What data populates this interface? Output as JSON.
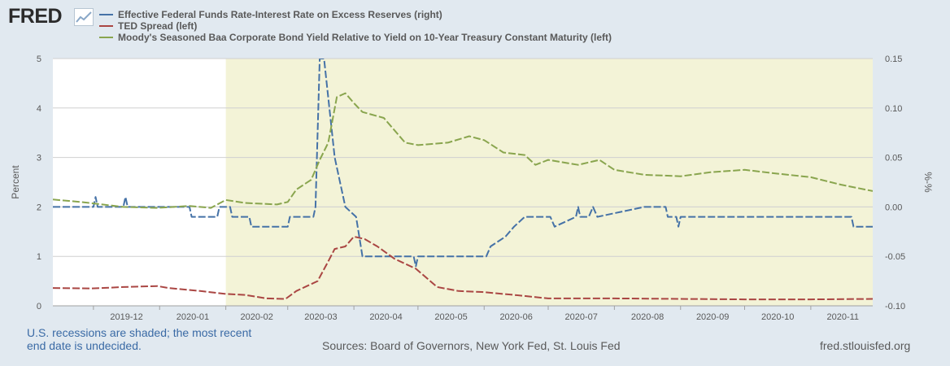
{
  "brand": {
    "logo_text": "FRED"
  },
  "colors": {
    "blue": "#4572a7",
    "red": "#aa4643",
    "green": "#89a54e",
    "recession": "#f3f3d7"
  },
  "chart_data": {
    "type": "line",
    "recession_shading": {
      "start": "2020-02",
      "end": "2020-11 (ongoing)"
    },
    "x_tick_labels": [
      "2019-12",
      "2020-01",
      "2020-02",
      "2020-03",
      "2020-04",
      "2020-05",
      "2020-06",
      "2020-07",
      "2020-08",
      "2020-09",
      "2020-10",
      "2020-11"
    ],
    "left_axis": {
      "label": "Percent",
      "ylim": [
        0,
        5
      ],
      "ticks": [
        "0",
        "1",
        "2",
        "3",
        "4",
        "5"
      ]
    },
    "right_axis": {
      "label": "%-%",
      "ylim": [
        -0.1,
        0.15
      ],
      "ticks": [
        "-0.10",
        "-0.05",
        "0.00",
        "0.05",
        "0.10",
        "0.15"
      ]
    },
    "series": [
      {
        "name": "Effective Federal Funds Rate-Interest Rate on Excess Reserves (right)",
        "axis": "right",
        "color": "#4572a7",
        "points": [
          [
            "2019-11-12",
            0.0
          ],
          [
            "2019-12-01",
            0.0
          ],
          [
            "2019-12-02",
            0.01
          ],
          [
            "2019-12-03",
            0.0
          ],
          [
            "2019-12-15",
            0.0
          ],
          [
            "2019-12-16",
            0.01
          ],
          [
            "2019-12-17",
            0.0
          ],
          [
            "2020-01-15",
            0.0
          ],
          [
            "2020-01-16",
            -0.01
          ],
          [
            "2020-01-28",
            -0.01
          ],
          [
            "2020-01-29",
            0.0
          ],
          [
            "2020-02-03",
            0.0
          ],
          [
            "2020-02-04",
            -0.01
          ],
          [
            "2020-02-12",
            -0.01
          ],
          [
            "2020-02-13",
            -0.02
          ],
          [
            "2020-03-01",
            -0.02
          ],
          [
            "2020-03-02",
            -0.01
          ],
          [
            "2020-03-13",
            -0.01
          ],
          [
            "2020-03-14",
            0.0
          ],
          [
            "2020-03-16",
            0.15
          ],
          [
            "2020-03-18",
            0.15
          ],
          [
            "2020-03-23",
            0.05
          ],
          [
            "2020-03-28",
            0.0
          ],
          [
            "2020-04-02",
            -0.01
          ],
          [
            "2020-04-05",
            -0.05
          ],
          [
            "2020-04-29",
            -0.05
          ],
          [
            "2020-04-30",
            -0.06
          ],
          [
            "2020-05-01",
            -0.05
          ],
          [
            "2020-06-02",
            -0.05
          ],
          [
            "2020-06-04",
            -0.04
          ],
          [
            "2020-06-11",
            -0.03
          ],
          [
            "2020-06-15",
            -0.02
          ],
          [
            "2020-06-20",
            -0.01
          ],
          [
            "2020-07-02",
            -0.01
          ],
          [
            "2020-07-04",
            -0.02
          ],
          [
            "2020-07-14",
            -0.01
          ],
          [
            "2020-07-15",
            0.0
          ],
          [
            "2020-07-16",
            -0.01
          ],
          [
            "2020-07-20",
            -0.01
          ],
          [
            "2020-07-22",
            0.0
          ],
          [
            "2020-07-24",
            -0.01
          ],
          [
            "2020-08-15",
            0.0
          ],
          [
            "2020-08-25",
            0.0
          ],
          [
            "2020-08-26",
            -0.01
          ],
          [
            "2020-08-30",
            -0.01
          ],
          [
            "2020-08-31",
            -0.02
          ],
          [
            "2020-09-01",
            -0.01
          ],
          [
            "2020-11-20",
            -0.01
          ],
          [
            "2020-11-21",
            -0.02
          ],
          [
            "2020-11-30",
            -0.02
          ]
        ]
      },
      {
        "name": "TED Spread (left)",
        "axis": "left",
        "color": "#aa4643",
        "points": [
          [
            "2019-11-12",
            0.36
          ],
          [
            "2019-11-30",
            0.35
          ],
          [
            "2019-12-15",
            0.38
          ],
          [
            "2019-12-31",
            0.4
          ],
          [
            "2020-01-05",
            0.36
          ],
          [
            "2020-01-20",
            0.3
          ],
          [
            "2020-02-01",
            0.24
          ],
          [
            "2020-02-10",
            0.22
          ],
          [
            "2020-02-20",
            0.15
          ],
          [
            "2020-02-29",
            0.14
          ],
          [
            "2020-03-05",
            0.3
          ],
          [
            "2020-03-10",
            0.4
          ],
          [
            "2020-03-15",
            0.5
          ],
          [
            "2020-03-20",
            0.9
          ],
          [
            "2020-03-23",
            1.15
          ],
          [
            "2020-03-28",
            1.2
          ],
          [
            "2020-04-01",
            1.4
          ],
          [
            "2020-04-06",
            1.35
          ],
          [
            "2020-04-12",
            1.2
          ],
          [
            "2020-04-20",
            0.95
          ],
          [
            "2020-04-30",
            0.75
          ],
          [
            "2020-05-10",
            0.38
          ],
          [
            "2020-05-20",
            0.3
          ],
          [
            "2020-05-31",
            0.28
          ],
          [
            "2020-06-15",
            0.22
          ],
          [
            "2020-07-01",
            0.15
          ],
          [
            "2020-08-01",
            0.15
          ],
          [
            "2020-09-01",
            0.14
          ],
          [
            "2020-10-01",
            0.13
          ],
          [
            "2020-11-01",
            0.13
          ],
          [
            "2020-11-30",
            0.14
          ]
        ]
      },
      {
        "name": "Moody's Seasoned Baa Corporate Bond Yield Relative to Yield on 10-Year Treasury Constant Maturity (left)",
        "axis": "left",
        "color": "#89a54e",
        "points": [
          [
            "2019-11-12",
            2.15
          ],
          [
            "2019-11-25",
            2.1
          ],
          [
            "2019-12-15",
            2.0
          ],
          [
            "2019-12-31",
            1.98
          ],
          [
            "2020-01-15",
            2.02
          ],
          [
            "2020-01-25",
            1.98
          ],
          [
            "2020-02-01",
            2.14
          ],
          [
            "2020-02-10",
            2.08
          ],
          [
            "2020-02-25",
            2.05
          ],
          [
            "2020-03-01",
            2.1
          ],
          [
            "2020-03-05",
            2.35
          ],
          [
            "2020-03-12",
            2.55
          ],
          [
            "2020-03-16",
            2.95
          ],
          [
            "2020-03-20",
            3.3
          ],
          [
            "2020-03-24",
            4.22
          ],
          [
            "2020-03-28",
            4.3
          ],
          [
            "2020-04-01",
            4.1
          ],
          [
            "2020-04-05",
            3.92
          ],
          [
            "2020-04-15",
            3.8
          ],
          [
            "2020-04-20",
            3.55
          ],
          [
            "2020-04-25",
            3.3
          ],
          [
            "2020-05-01",
            3.25
          ],
          [
            "2020-05-15",
            3.3
          ],
          [
            "2020-05-25",
            3.43
          ],
          [
            "2020-06-01",
            3.35
          ],
          [
            "2020-06-10",
            3.1
          ],
          [
            "2020-06-20",
            3.05
          ],
          [
            "2020-06-25",
            2.85
          ],
          [
            "2020-07-01",
            2.95
          ],
          [
            "2020-07-15",
            2.85
          ],
          [
            "2020-07-25",
            2.95
          ],
          [
            "2020-08-01",
            2.75
          ],
          [
            "2020-08-15",
            2.65
          ],
          [
            "2020-09-01",
            2.62
          ],
          [
            "2020-09-15",
            2.7
          ],
          [
            "2020-10-01",
            2.75
          ],
          [
            "2020-10-15",
            2.68
          ],
          [
            "2020-11-01",
            2.6
          ],
          [
            "2020-11-15",
            2.45
          ],
          [
            "2020-11-30",
            2.32
          ]
        ]
      }
    ]
  },
  "legend": {
    "items": [
      "Effective Federal Funds Rate-Interest Rate on Excess Reserves (right)",
      "TED Spread (left)",
      "Moody's Seasoned Baa Corporate Bond Yield Relative to Yield on 10-Year Treasury Constant Maturity (left)"
    ]
  },
  "footer": {
    "note": "U.S. recessions are shaded; the most recent end date is undecided.",
    "sources": "Sources: Board of Governors, New York Fed, St. Louis Fed",
    "url": "fred.stlouisfed.org"
  }
}
